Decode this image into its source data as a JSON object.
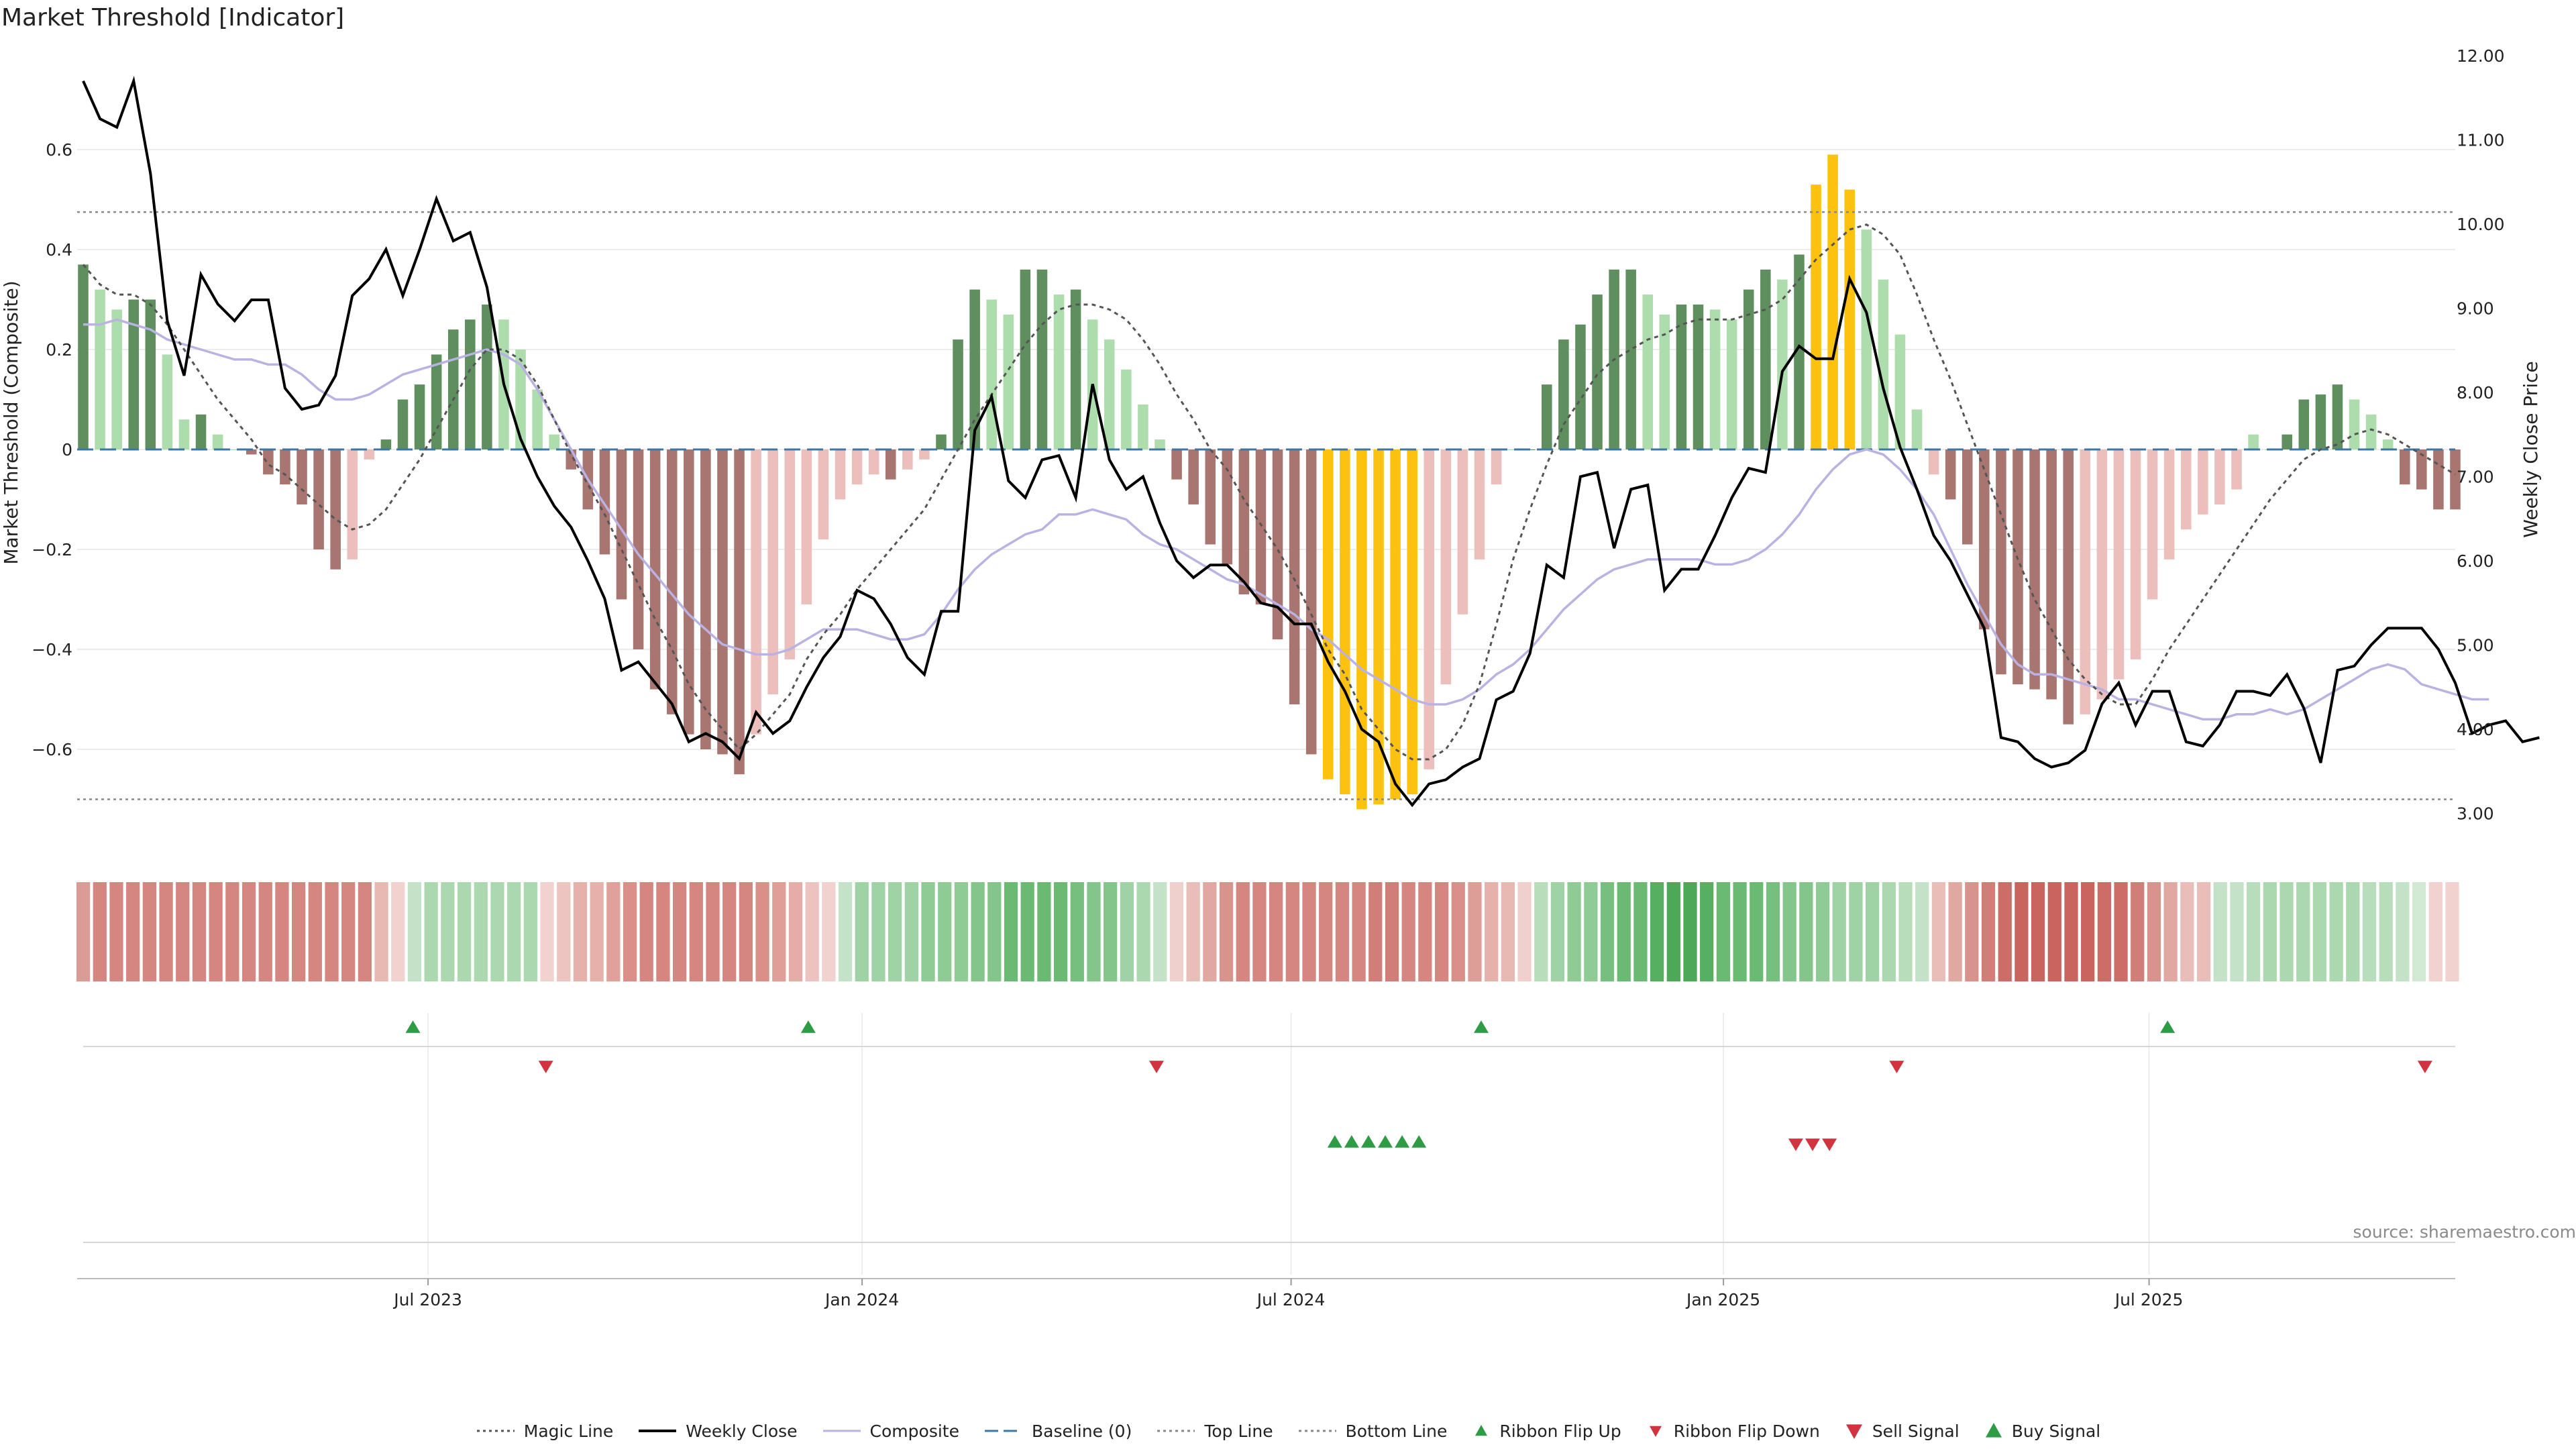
{
  "header": {
    "title": "Market Threshold [Indicator]"
  },
  "footer": {
    "source": "source: sharemaestro.com"
  },
  "legend": [
    {
      "key": "magic",
      "label": "Magic Line",
      "icon": "dotted-line"
    },
    {
      "key": "close",
      "label": "Weekly Close",
      "icon": "solid-line"
    },
    {
      "key": "composite",
      "label": "Composite",
      "icon": "solid-line"
    },
    {
      "key": "baseline",
      "label": "Baseline (0)",
      "icon": "dashed-line"
    },
    {
      "key": "top",
      "label": "Top Line",
      "icon": "dotted-line"
    },
    {
      "key": "bottom",
      "label": "Bottom Line",
      "icon": "dotted-line"
    },
    {
      "key": "flipup",
      "label": "Ribbon Flip Up",
      "icon": "triangle-up-marker"
    },
    {
      "key": "flipdown",
      "label": "Ribbon Flip Down",
      "icon": "triangle-down-marker"
    },
    {
      "key": "sell",
      "label": "Sell Signal",
      "icon": "triangle-down-marker"
    },
    {
      "key": "buy",
      "label": "Buy Signal",
      "icon": "triangle-up-marker"
    }
  ],
  "chart_data": {
    "type": "bar",
    "title": "Market Threshold [Indicator]",
    "ylabel": "Market Threshold (Composite)",
    "y2label": "Weekly Close Price",
    "ylim": [
      -0.79,
      0.8
    ],
    "y2lim": [
      2.65,
      12.35
    ],
    "yticks": [
      "0.6",
      "0.4",
      "0.2",
      "0",
      "−0.2",
      "−0.4",
      "−0.6"
    ],
    "yticks_values": [
      0.6,
      0.4,
      0.2,
      0,
      -0.2,
      -0.4,
      -0.6
    ],
    "y2ticks": [
      "12.00",
      "11.00",
      "10.00",
      "9.00",
      "8.00",
      "7.00",
      "6.00",
      "5.00",
      "4.00",
      "3.00"
    ],
    "y2ticks_values": [
      12,
      11,
      10,
      9,
      8,
      7,
      6,
      5,
      4,
      3
    ],
    "xticks": [
      "Jul 2023",
      "Jan 2024",
      "Jul 2024",
      "Jan 2025",
      "Jul 2025"
    ],
    "xticks_week_index": [
      20.5,
      46.3,
      71.8,
      97.5,
      122.8
    ],
    "top_line": 0.475,
    "bottom_line": -0.7,
    "baseline": 0,
    "grid": true,
    "legend_position": "bottom-center",
    "colors": {
      "strong_pos": "#5f8f5f",
      "weak_pos": "#addcad",
      "strong_neg": "#a87571",
      "weak_neg": "#ecbfbc",
      "extreme": "#fdc10f",
      "close": "#000000",
      "composite": "#b9b2e2",
      "magic": "#555555",
      "baseline": "#3b78a8",
      "threshold": "#888888",
      "up_marker": "#2e9b45",
      "down_marker": "#d2343f"
    },
    "composite_bars": [
      0.37,
      0.32,
      0.28,
      0.3,
      0.3,
      0.19,
      0.06,
      0.07,
      0.03,
      0.0,
      -0.01,
      -0.05,
      -0.07,
      -0.11,
      -0.2,
      -0.24,
      -0.22,
      -0.02,
      0.02,
      0.1,
      0.13,
      0.19,
      0.24,
      0.26,
      0.29,
      0.26,
      0.2,
      0.12,
      0.03,
      -0.04,
      -0.12,
      -0.21,
      -0.3,
      -0.4,
      -0.48,
      -0.53,
      -0.57,
      -0.6,
      -0.61,
      -0.65,
      -0.57,
      -0.49,
      -0.42,
      -0.31,
      -0.18,
      -0.1,
      -0.07,
      -0.05,
      -0.06,
      -0.04,
      -0.02,
      0.03,
      0.22,
      0.32,
      0.3,
      0.27,
      0.36,
      0.36,
      0.31,
      0.32,
      0.26,
      0.22,
      0.16,
      0.09,
      0.02,
      -0.06,
      -0.11,
      -0.19,
      -0.23,
      -0.29,
      -0.31,
      -0.38,
      -0.51,
      -0.61,
      -0.66,
      -0.69,
      -0.72,
      -0.71,
      -0.7,
      -0.69,
      -0.64,
      -0.47,
      -0.33,
      -0.22,
      -0.07,
      0.0,
      0.0,
      0.13,
      0.22,
      0.25,
      0.31,
      0.36,
      0.36,
      0.31,
      0.27,
      0.29,
      0.29,
      0.28,
      0.26,
      0.32,
      0.36,
      0.34,
      0.39,
      0.53,
      0.59,
      0.52,
      0.44,
      0.34,
      0.23,
      0.08,
      -0.05,
      -0.1,
      -0.19,
      -0.36,
      -0.45,
      -0.47,
      -0.48,
      -0.5,
      -0.55,
      -0.53,
      -0.5,
      -0.46,
      -0.42,
      -0.3,
      -0.22,
      -0.16,
      -0.13,
      -0.11,
      -0.08,
      0.03,
      0.0,
      0.03,
      0.1,
      0.11,
      0.13,
      0.1,
      0.07,
      0.02,
      -0.07,
      -0.08,
      -0.12,
      -0.12
    ],
    "weekly_close": [
      11.7,
      11.25,
      11.15,
      11.7,
      10.6,
      8.85,
      8.2,
      9.4,
      9.05,
      8.85,
      9.1,
      9.1,
      8.05,
      7.8,
      7.85,
      8.2,
      9.15,
      9.35,
      9.7,
      9.15,
      9.7,
      10.3,
      9.8,
      9.9,
      9.25,
      8.1,
      7.45,
      7.0,
      6.65,
      6.4,
      6.0,
      5.55,
      4.7,
      4.8,
      4.55,
      4.3,
      3.85,
      3.95,
      3.85,
      3.65,
      4.2,
      3.95,
      4.1,
      4.5,
      4.85,
      5.1,
      5.65,
      5.55,
      5.25,
      4.85,
      4.65,
      5.4,
      5.4,
      7.55,
      7.95,
      6.95,
      6.75,
      7.2,
      7.25,
      6.75,
      8.1,
      7.2,
      6.85,
      7.0,
      6.45,
      6.0,
      5.8,
      5.95,
      5.95,
      5.75,
      5.5,
      5.45,
      5.25,
      5.25,
      4.8,
      4.45,
      4.0,
      3.85,
      3.35,
      3.1,
      3.35,
      3.4,
      3.55,
      3.65,
      4.35,
      4.45,
      4.9,
      5.95,
      5.8,
      7.0,
      7.05,
      6.15,
      6.85,
      6.9,
      5.65,
      5.9,
      5.9,
      6.3,
      6.75,
      7.1,
      7.05,
      8.25,
      8.55,
      8.4,
      8.4,
      9.35,
      8.95,
      8.05,
      7.35,
      6.85,
      6.3,
      6.0,
      5.6,
      5.2,
      3.9,
      3.85,
      3.65,
      3.55,
      3.6,
      3.75,
      4.3,
      4.55,
      4.05,
      4.45,
      4.45,
      3.85,
      3.8,
      4.05,
      4.45,
      4.45,
      4.4,
      4.65,
      4.25,
      3.6,
      4.7,
      4.75,
      5.0,
      5.2,
      5.2,
      5.2,
      4.95,
      4.55,
      3.95,
      4.05,
      4.1,
      3.85,
      3.9
    ],
    "composite_line": [
      0.25,
      0.25,
      0.26,
      0.25,
      0.24,
      0.22,
      0.21,
      0.2,
      0.19,
      0.18,
      0.18,
      0.17,
      0.17,
      0.15,
      0.12,
      0.1,
      0.1,
      0.11,
      0.13,
      0.15,
      0.16,
      0.17,
      0.18,
      0.19,
      0.2,
      0.19,
      0.17,
      0.12,
      0.06,
      0.0,
      -0.06,
      -0.11,
      -0.16,
      -0.21,
      -0.25,
      -0.29,
      -0.33,
      -0.36,
      -0.39,
      -0.4,
      -0.41,
      -0.41,
      -0.4,
      -0.38,
      -0.36,
      -0.36,
      -0.36,
      -0.37,
      -0.38,
      -0.38,
      -0.37,
      -0.33,
      -0.28,
      -0.24,
      -0.21,
      -0.19,
      -0.17,
      -0.16,
      -0.13,
      -0.13,
      -0.12,
      -0.13,
      -0.14,
      -0.17,
      -0.19,
      -0.2,
      -0.22,
      -0.24,
      -0.26,
      -0.27,
      -0.29,
      -0.31,
      -0.33,
      -0.36,
      -0.38,
      -0.41,
      -0.44,
      -0.46,
      -0.48,
      -0.5,
      -0.51,
      -0.51,
      -0.5,
      -0.48,
      -0.45,
      -0.43,
      -0.4,
      -0.36,
      -0.32,
      -0.29,
      -0.26,
      -0.24,
      -0.23,
      -0.22,
      -0.22,
      -0.22,
      -0.22,
      -0.23,
      -0.23,
      -0.22,
      -0.2,
      -0.17,
      -0.13,
      -0.08,
      -0.04,
      -0.01,
      0.0,
      -0.01,
      -0.04,
      -0.08,
      -0.13,
      -0.2,
      -0.27,
      -0.33,
      -0.39,
      -0.43,
      -0.45,
      -0.45,
      -0.46,
      -0.47,
      -0.48,
      -0.5,
      -0.5,
      -0.51,
      -0.52,
      -0.53,
      -0.54,
      -0.54,
      -0.53,
      -0.53,
      -0.52,
      -0.53,
      -0.52,
      -0.5,
      -0.48,
      -0.46,
      -0.44,
      -0.43,
      -0.44,
      -0.47,
      -0.48,
      -0.49,
      -0.5,
      -0.5
    ],
    "magic_line": [
      0.37,
      0.33,
      0.31,
      0.31,
      0.29,
      0.25,
      0.2,
      0.15,
      0.1,
      0.06,
      0.02,
      -0.03,
      -0.05,
      -0.08,
      -0.11,
      -0.14,
      -0.16,
      -0.15,
      -0.12,
      -0.07,
      -0.02,
      0.04,
      0.1,
      0.16,
      0.2,
      0.2,
      0.18,
      0.13,
      0.06,
      -0.01,
      -0.07,
      -0.13,
      -0.2,
      -0.27,
      -0.34,
      -0.4,
      -0.47,
      -0.52,
      -0.56,
      -0.6,
      -0.57,
      -0.53,
      -0.49,
      -0.42,
      -0.37,
      -0.33,
      -0.28,
      -0.24,
      -0.2,
      -0.16,
      -0.12,
      -0.06,
      0.0,
      0.06,
      0.11,
      0.16,
      0.21,
      0.25,
      0.28,
      0.29,
      0.29,
      0.28,
      0.26,
      0.22,
      0.17,
      0.11,
      0.06,
      0.0,
      -0.04,
      -0.1,
      -0.15,
      -0.2,
      -0.26,
      -0.33,
      -0.4,
      -0.45,
      -0.52,
      -0.56,
      -0.6,
      -0.62,
      -0.62,
      -0.6,
      -0.55,
      -0.47,
      -0.35,
      -0.22,
      -0.12,
      -0.03,
      0.05,
      0.1,
      0.15,
      0.18,
      0.2,
      0.22,
      0.23,
      0.25,
      0.26,
      0.26,
      0.26,
      0.27,
      0.28,
      0.3,
      0.34,
      0.38,
      0.41,
      0.44,
      0.45,
      0.43,
      0.39,
      0.31,
      0.22,
      0.14,
      0.05,
      -0.04,
      -0.13,
      -0.22,
      -0.3,
      -0.36,
      -0.42,
      -0.46,
      -0.49,
      -0.51,
      -0.51,
      -0.46,
      -0.4,
      -0.35,
      -0.3,
      -0.25,
      -0.2,
      -0.15,
      -0.1,
      -0.06,
      -0.02,
      0.0,
      0.01,
      0.03,
      0.04,
      0.03,
      0.01,
      -0.01,
      -0.03,
      -0.05
    ],
    "ribbon_colors": [
      "#da9c96",
      "#d58680",
      "#d58680",
      "#d58680",
      "#d58680",
      "#d58680",
      "#d58680",
      "#d58680",
      "#d58680",
      "#d58680",
      "#d58680",
      "#d58680",
      "#d58680",
      "#d58680",
      "#d58680",
      "#d58680",
      "#d58680",
      "#d58680",
      "#e8b8b3",
      "#f2d2cf",
      "#c4e2c7",
      "#acd8b0",
      "#acd8b0",
      "#acd8b0",
      "#acd8b0",
      "#acd8b0",
      "#acd8b0",
      "#acd8b0",
      "#f2d2cf",
      "#edc4c0",
      "#e6b1ab",
      "#e6b1ab",
      "#e0a19b",
      "#da8f88",
      "#d58680",
      "#d58680",
      "#d58680",
      "#d58680",
      "#d58680",
      "#d58680",
      "#d58680",
      "#da8f88",
      "#e09e98",
      "#e6ada8",
      "#edc3bf",
      "#f2d2cf",
      "#c4e2c7",
      "#9fd2a4",
      "#9fd2a4",
      "#9fd2a4",
      "#9fd2a4",
      "#8fcb95",
      "#8fcb95",
      "#8fcb95",
      "#83c58a",
      "#83c58a",
      "#6bba74",
      "#6bba74",
      "#6bba74",
      "#6bba74",
      "#77bf7f",
      "#83c58a",
      "#83c58a",
      "#9fd2a4",
      "#acd8b0",
      "#c4e2c7",
      "#f0d0cc",
      "#e9bdb8",
      "#e1a8a2",
      "#d9938d",
      "#d58680",
      "#d58680",
      "#d58680",
      "#d58680",
      "#d58680",
      "#d58680",
      "#d58680",
      "#d58680",
      "#d27e78",
      "#d27e78",
      "#d58680",
      "#d58680",
      "#d58680",
      "#d9908a",
      "#de9e98",
      "#e6b1ab",
      "#e8b8b3",
      "#f0d0cc",
      "#b8ddbb",
      "#9fd2a4",
      "#8fcb95",
      "#8fcb95",
      "#77bf7f",
      "#6bba74",
      "#6bba74",
      "#57b061",
      "#4da857",
      "#4da857",
      "#57b061",
      "#6bba74",
      "#6bba74",
      "#6bba74",
      "#77bf7f",
      "#83c58a",
      "#83c58a",
      "#8fcb95",
      "#9fd2a4",
      "#9fd2a4",
      "#9fd2a4",
      "#acd8b0",
      "#b8ddbb",
      "#c4e2c7",
      "#e9bdb8",
      "#e1a8a2",
      "#d9938d",
      "#d27e78",
      "#cc6d68",
      "#c9645f",
      "#c9645f",
      "#c9645f",
      "#c9645f",
      "#c9645f",
      "#cc6d68",
      "#cc6d68",
      "#d27e78",
      "#d9938d",
      "#e1a8a2",
      "#e9bdb8",
      "#e9bdb8",
      "#c4e2c7",
      "#c4e2c7",
      "#b8ddbb",
      "#acd8b0",
      "#acd8b0",
      "#acd8b0",
      "#acd8b0",
      "#acd8b0",
      "#acd8b0",
      "#b8ddbb",
      "#b8ddbb",
      "#c4e2c7",
      "#d2ead4",
      "#f2d2cf",
      "#f2d2cf"
    ],
    "ribbon_flip_up_weeks": [
      19.6,
      43.1,
      83.1,
      123.9
    ],
    "ribbon_flip_down_weeks": [
      27.5,
      63.8,
      107.8,
      139.2
    ],
    "buy_signal_weeks": [
      74.4,
      75.4,
      76.4,
      77.4,
      78.4,
      79.4
    ],
    "sell_signal_weeks": [
      101.8,
      102.8,
      103.8
    ]
  }
}
